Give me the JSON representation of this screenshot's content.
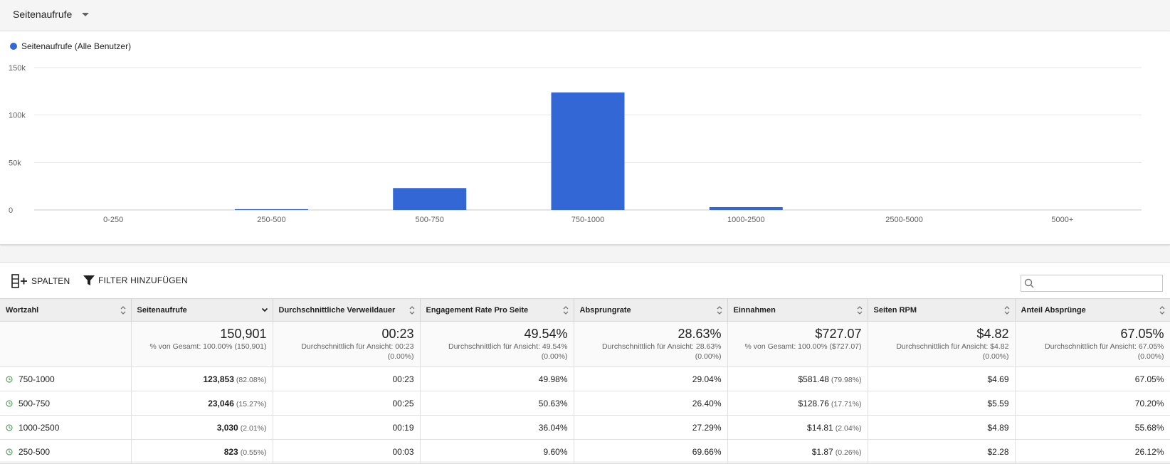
{
  "metric_selector": {
    "label": "Seitenaufrufe"
  },
  "chart_data": {
    "type": "bar",
    "legend": "Seitenaufrufe (Alle Benutzer)",
    "categories": [
      "0-250",
      "250-500",
      "500-750",
      "750-1000",
      "1000-2500",
      "2500-5000",
      "5000+"
    ],
    "series": [
      {
        "name": "Seitenaufrufe (Alle Benutzer)",
        "values": [
          0,
          823,
          23046,
          123853,
          3030,
          0,
          0
        ]
      }
    ],
    "yticks": [
      "0",
      "50k",
      "100k",
      "150k"
    ],
    "ylim": [
      0,
      150000
    ],
    "grid": true,
    "color": "#3367d6"
  },
  "toolbar": {
    "columns_label": "SPALTEN",
    "filter_label": "FILTER HINZUFÜGEN",
    "search_placeholder": ""
  },
  "table": {
    "headers": [
      "Wortzahl",
      "Seitenaufrufe",
      "Durchschnittliche Verweildauer",
      "Engagement Rate Pro Seite",
      "Absprungrate",
      "Einnahmen",
      "Seiten RPM",
      "Anteil Absprünge"
    ],
    "totals": [
      {
        "value": "",
        "sub1": "",
        "sub2": ""
      },
      {
        "value": "150,901",
        "sub1": "% von Gesamt: 100.00% (150,901)",
        "sub2": ""
      },
      {
        "value": "00:23",
        "sub1": "Durchschnittlich für Ansicht: 00:23",
        "sub2": "(0.00%)"
      },
      {
        "value": "49.54%",
        "sub1": "Durchschnittlich für Ansicht: 49.54%",
        "sub2": "(0.00%)"
      },
      {
        "value": "28.63%",
        "sub1": "Durchschnittlich für Ansicht: 28.63%",
        "sub2": "(0.00%)"
      },
      {
        "value": "$727.07",
        "sub1": "% von Gesamt: 100.00% ($727.07)",
        "sub2": ""
      },
      {
        "value": "$4.82",
        "sub1": "Durchschnittlich für Ansicht: $4.82",
        "sub2": "(0.00%)"
      },
      {
        "value": "67.05%",
        "sub1": "Durchschnittlich für Ansicht: 67.05%",
        "sub2": "(0.00%)"
      }
    ],
    "rows": [
      {
        "label": "750-1000",
        "views": "123,853",
        "views_pct": "(82.08%)",
        "duration": "00:23",
        "engagement": "49.98%",
        "bounce": "29.04%",
        "revenue": "$581.48",
        "revenue_pct": "(79.98%)",
        "rpm": "$4.69",
        "bounce_share": "67.05%"
      },
      {
        "label": "500-750",
        "views": "23,046",
        "views_pct": "(15.27%)",
        "duration": "00:25",
        "engagement": "50.63%",
        "bounce": "26.40%",
        "revenue": "$128.76",
        "revenue_pct": "(17.71%)",
        "rpm": "$5.59",
        "bounce_share": "70.20%"
      },
      {
        "label": "1000-2500",
        "views": "3,030",
        "views_pct": "(2.01%)",
        "duration": "00:19",
        "engagement": "36.04%",
        "bounce": "27.29%",
        "revenue": "$14.81",
        "revenue_pct": "(2.04%)",
        "rpm": "$4.89",
        "bounce_share": "55.68%"
      },
      {
        "label": "250-500",
        "views": "823",
        "views_pct": "(0.55%)",
        "duration": "00:03",
        "engagement": "9.60%",
        "bounce": "69.66%",
        "revenue": "$1.87",
        "revenue_pct": "(0.26%)",
        "rpm": "$2.28",
        "bounce_share": "26.12%"
      }
    ]
  }
}
